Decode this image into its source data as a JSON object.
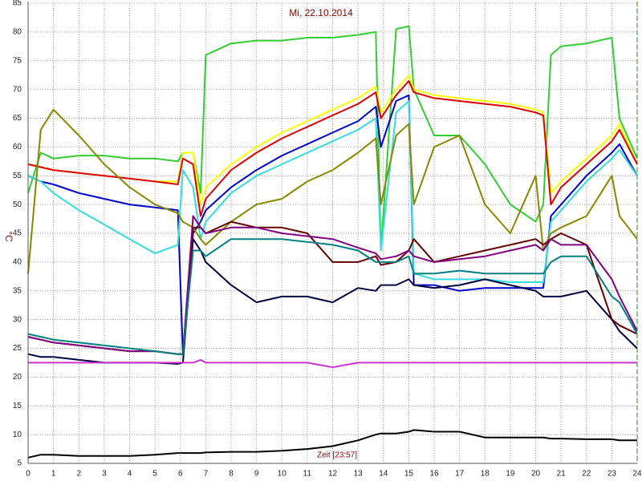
{
  "chart_data": {
    "type": "line",
    "title": "Mi, 22.10.2014",
    "x_label": "Zeit [23:57]",
    "y_label": "°C",
    "grid": true,
    "xlim": [
      0,
      24
    ],
    "ylim": [
      5,
      85
    ],
    "xticks": [
      0,
      1,
      2,
      3,
      4,
      5,
      6,
      7,
      8,
      9,
      10,
      11,
      12,
      13,
      14,
      15,
      16,
      17,
      18,
      19,
      20,
      21,
      22,
      23,
      24
    ],
    "yticks": [
      5,
      10,
      15,
      20,
      25,
      30,
      35,
      40,
      45,
      50,
      55,
      60,
      65,
      70,
      75,
      80,
      85
    ],
    "x": [
      0,
      0.5,
      1,
      2,
      3,
      4,
      5,
      5.9,
      6.1,
      6.5,
      6.8,
      7,
      8,
      9,
      10,
      11,
      12,
      13,
      13.7,
      13.9,
      14.5,
      15,
      15.2,
      16,
      17,
      18,
      19,
      20,
      20.3,
      20.6,
      21,
      22,
      23,
      23.3,
      24
    ],
    "series": [
      {
        "color": "#33cc33",
        "values": [
          52,
          59,
          58,
          58.5,
          58.5,
          58,
          58,
          57.5,
          59,
          59,
          52,
          76,
          78,
          78.5,
          78.5,
          79,
          79,
          79.5,
          80,
          42,
          80.5,
          81,
          70,
          62,
          62,
          57,
          50,
          47,
          50,
          76,
          77.5,
          78,
          79,
          65,
          58
        ]
      },
      {
        "color": "#ffff00",
        "values": [
          57,
          56.5,
          56,
          55.5,
          55,
          54.5,
          54,
          54,
          59,
          59,
          50,
          53,
          57,
          60,
          62.5,
          64.5,
          66.5,
          68.5,
          70.5,
          66,
          70,
          72.5,
          70,
          69,
          68.5,
          68,
          67.5,
          66.5,
          66,
          52,
          54,
          58,
          62,
          64,
          57
        ]
      },
      {
        "color": "#dd0000",
        "values": [
          57,
          56.5,
          56,
          55.5,
          55,
          54.5,
          54,
          53.5,
          58,
          57,
          48,
          51,
          56,
          59,
          61.5,
          63.5,
          65.5,
          67.5,
          69.5,
          65,
          69,
          71.5,
          69.5,
          68.5,
          68,
          67.5,
          67,
          66,
          65.5,
          50,
          53,
          57,
          61,
          63,
          57
        ]
      },
      {
        "color": "#0000cc",
        "values": [
          55,
          54,
          53.5,
          52,
          51,
          50,
          49.5,
          49,
          24,
          45,
          47,
          49,
          53,
          56,
          58.5,
          60.5,
          62.5,
          64.5,
          67,
          60,
          68,
          69,
          36,
          36,
          35,
          35.5,
          35.5,
          35.5,
          35.5,
          48,
          50,
          55,
          59,
          60.5,
          55
        ]
      },
      {
        "color": "#33dddd",
        "values": [
          55,
          54,
          52,
          49,
          46.5,
          44,
          41.5,
          43,
          56,
          53,
          44,
          47,
          52,
          55,
          57,
          59,
          61,
          63,
          65,
          42,
          66,
          68,
          38,
          37,
          37,
          37,
          36.5,
          36.5,
          36.5,
          47,
          49,
          54,
          58,
          59.5,
          55
        ]
      },
      {
        "color": "#888800",
        "values": [
          38,
          63,
          66.5,
          62,
          57,
          53,
          50,
          48.5,
          47,
          46,
          44,
          43,
          47,
          50,
          51,
          54,
          56,
          59,
          61.5,
          50,
          62,
          64,
          50,
          60,
          62,
          50,
          45,
          55,
          42,
          45,
          46,
          48,
          55,
          48,
          44
        ]
      },
      {
        "color": "#000040",
        "values": [
          24,
          23.5,
          23.5,
          23,
          22.5,
          22.5,
          22.5,
          22.3,
          22.5,
          44,
          42,
          40,
          36,
          33,
          34,
          34,
          33,
          35.5,
          35,
          36,
          36,
          37,
          36,
          35.5,
          36,
          37,
          36,
          35,
          34,
          34,
          34,
          35,
          30,
          28,
          25
        ]
      },
      {
        "color": "#660000",
        "values": [
          27,
          26.5,
          26,
          25.5,
          25,
          24.5,
          24.5,
          24,
          24,
          46,
          46,
          45,
          47,
          46,
          46,
          45,
          40,
          40,
          41,
          39.5,
          40,
          42,
          44,
          40,
          41,
          42,
          43,
          44,
          43,
          44,
          45,
          43,
          30,
          29,
          27.5
        ]
      },
      {
        "color": "#800080",
        "values": [
          27,
          26.5,
          26,
          25.5,
          25,
          24.5,
          24.5,
          24,
          24,
          48,
          46,
          45,
          46,
          46,
          45,
          44.5,
          44,
          42.5,
          41.5,
          40.5,
          41,
          42,
          41,
          40,
          40.5,
          41,
          42,
          43,
          42,
          44,
          43,
          43,
          37,
          34,
          28
        ]
      },
      {
        "color": "#008080",
        "values": [
          27.5,
          27,
          26.5,
          26,
          25.5,
          25,
          24.5,
          24,
          24,
          42,
          42,
          41,
          44,
          44,
          44,
          43.5,
          43,
          42,
          40,
          40,
          40,
          41,
          38,
          38,
          38.5,
          38,
          38,
          38,
          38,
          40,
          41,
          41,
          34,
          33,
          27.5
        ]
      },
      {
        "color": "#cc33cc",
        "values": [
          22.5,
          22.5,
          22.5,
          22.5,
          22.5,
          22.5,
          22.5,
          22.5,
          22.5,
          22.5,
          23,
          22.5,
          22.5,
          22.5,
          22.5,
          22.5,
          21.7,
          22.5,
          22.5,
          22.5,
          22.5,
          22.5,
          22.5,
          22.5,
          22.5,
          22.5,
          22.5,
          22.5,
          22.5,
          22.5,
          22.5,
          22.5,
          22.5,
          22.5,
          22.5
        ]
      },
      {
        "color": "#000000",
        "values": [
          6,
          6.5,
          6.5,
          6.3,
          6.3,
          6.3,
          6.5,
          6.8,
          6.8,
          6.8,
          6.8,
          6.9,
          7,
          7,
          7.2,
          7.5,
          8,
          9,
          10,
          10.2,
          10.2,
          10.5,
          10.8,
          10.5,
          10.5,
          9.5,
          9.5,
          9.5,
          9.5,
          9.3,
          9.3,
          9.2,
          9.2,
          9,
          9
        ]
      }
    ]
  }
}
